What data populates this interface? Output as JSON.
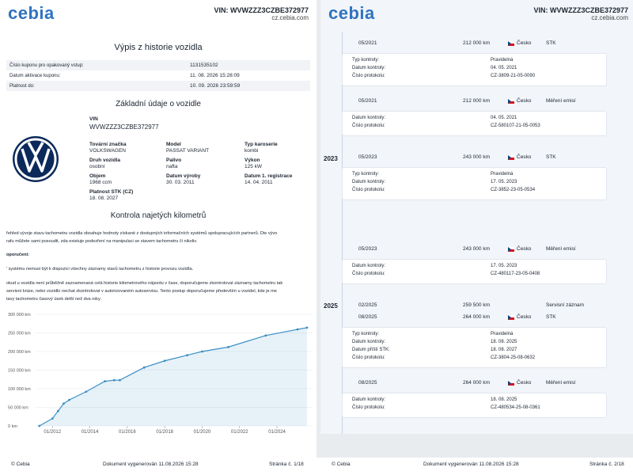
{
  "left": {
    "header": {
      "logo": "cebia",
      "vin": "VIN: WVWZZZ3CZBE372977",
      "site": "cz.cebia.com"
    },
    "title": "Výpis z historie vozidla",
    "coupon": [
      [
        "Číslo kuponu pro opakovaný vstup:",
        "1131535102"
      ],
      [
        "Datum aktivace kuponu:",
        "11. 08. 2026 15:28:09"
      ],
      [
        "Platnost do:",
        "10. 09. 2026 23:59:59"
      ]
    ],
    "basic_title": "Základní údaje o vozidle",
    "vin_label": "VIN",
    "vin_value": "WVWZZZ3CZBE372977",
    "fields": [
      [
        "Tovární značka",
        "VOLKSWAGEN"
      ],
      [
        "Model",
        "PASSAT VARIANT"
      ],
      [
        "Typ karoserie",
        "kombi"
      ],
      [
        "Druh vozidla",
        "osobní"
      ],
      [
        "Palivo",
        "nafta"
      ],
      [
        "Výkon",
        "125 kW"
      ],
      [
        "Objem",
        "1968 ccm"
      ],
      [
        "Datum výroby",
        "30. 03. 2011"
      ],
      [
        "Datum 1. registrace",
        "14. 04. 2011"
      ],
      [
        "Platnost STK (CZ)",
        "18. 08. 2027"
      ]
    ],
    "km_title": "Kontrola najetých kilometrů",
    "paragraphs": [
      "řehled vývoje stavu tachometru vozidla obsahuje hodnoty získané z dostupných informačních systémů spolupracujících partnerů. Die vývo",
      "rafu můžete sami posoudit, zda existuje podezření na manipulaci se stavem tachometru či nikoliv.",
      "oporučení:",
      "' systému nemusí být k dispozici všechny záznamy stavů tachometru z historie provozu vozidla.",
      "okud u vozidla není průběžně zaznamenaná celá historie kilometrového nájezdu v čase, doporučujeme zkontrolovat záznamy tachometru tak",
      "servisní knize, nebo vozidlo nechat zkontrolovat v autorizovaném autoservisu. Tento postup doporučujeme především u vozidel, kde je me",
      "tavy tachometru časový úsek delší než dva roky."
    ],
    "chart": {
      "type": "line",
      "x": [
        2011.3,
        2012.0,
        2012.3,
        2012.6,
        2012.9,
        2013.8,
        2014.8,
        2015.3,
        2015.6,
        2016.9,
        2018.0,
        2019.2,
        2020.0,
        2021.4,
        2023.4,
        2025.1,
        2025.6
      ],
      "values": [
        0,
        20000,
        40000,
        60000,
        70000,
        92000,
        120000,
        123000,
        123000,
        157000,
        175000,
        190000,
        200000,
        212000,
        243000,
        259500,
        264000
      ],
      "color": "#3a8fc4",
      "xlim": [
        2011.1,
        2025.9
      ],
      "ylim": [
        0,
        300000
      ],
      "xticks": [
        {
          "value": 2012,
          "label": "01/2012"
        },
        {
          "value": 2014,
          "label": "01/2014"
        },
        {
          "value": 2016,
          "label": "01/2016"
        },
        {
          "value": 2018,
          "label": "01/2018"
        },
        {
          "value": 2020,
          "label": "01/2020"
        },
        {
          "value": 2022,
          "label": "01/2022"
        },
        {
          "value": 2024,
          "label": "01/2024"
        }
      ],
      "yticks": [
        {
          "value": 0,
          "label": "0 km"
        },
        {
          "value": 50000,
          "label": "50 000 km"
        },
        {
          "value": 100000,
          "label": "100 000 km"
        },
        {
          "value": 150000,
          "label": "150 000 km"
        },
        {
          "value": 200000,
          "label": "200 000 km"
        },
        {
          "value": 250000,
          "label": "250 000 km"
        },
        {
          "value": 300000,
          "label": "300 000 km"
        }
      ],
      "grid": true
    },
    "footer": {
      "copyright": "© Cebia",
      "generated": "Dokument vygenerován 11.08.2026 15:28",
      "page": "Stránka č. 1/18"
    }
  },
  "right": {
    "header": {
      "logo": "cebia",
      "vin": "VIN: WVWZZZ3CZBE372977",
      "site": "cz.cebia.com"
    },
    "years": [
      "2023",
      "2025"
    ],
    "entries": [
      {
        "date": "05/2021",
        "km": "212 000 km",
        "country": "Česko",
        "kind": "STK",
        "rows": [
          [
            "Typ kontroly:",
            "Pravidelná"
          ],
          [
            "Datum kontroly:",
            "04. 05. 2021"
          ],
          [
            "Číslo protokolu:",
            "CZ-3809-21-05-0090"
          ]
        ]
      },
      {
        "date": "05/2021",
        "km": "212 000 km",
        "country": "Česko",
        "kind": "Měření emisí",
        "rows": [
          [
            "Datum kontroly:",
            "04. 05. 2021"
          ],
          [
            "Číslo protokolu:",
            "CZ-580107-21-05-0053"
          ]
        ]
      },
      {
        "date": "05/2023",
        "km": "243 000 km",
        "country": "Česko",
        "kind": "STK",
        "rows": [
          [
            "Typ kontroly:",
            "Pravidelná"
          ],
          [
            "Datum kontroly:",
            "17. 05. 2023"
          ],
          [
            "Číslo protokolu:",
            "CZ-3852-23-05-0534"
          ]
        ]
      },
      {
        "date": "05/2023",
        "km": "243 000 km",
        "country": "Česko",
        "kind": "Měření emisí",
        "rows": [
          [
            "Datum kontroly:",
            "17. 05. 2023"
          ],
          [
            "Číslo protokolu:",
            "CZ-480117-23-05-0408"
          ]
        ]
      },
      {
        "date": "02/2025",
        "km": "259 500 km",
        "kind": "Servisní záznam",
        "rows": []
      },
      {
        "date": "08/2025",
        "km": "264 000 km",
        "country": "Česko",
        "kind": "STK",
        "rows": [
          [
            "Typ kontroly:",
            "Pravidelná"
          ],
          [
            "Datum kontroly:",
            "18. 08. 2025"
          ],
          [
            "Datum příští STK:",
            "18. 08. 2027"
          ],
          [
            "Číslo protokolu:",
            "CZ-3804-25-08-0632"
          ]
        ]
      },
      {
        "date": "08/2025",
        "km": "264 000 km",
        "country": "Česko",
        "kind": "Měření emisí",
        "rows": [
          [
            "Datum kontroly:",
            "18. 08. 2025"
          ],
          [
            "Číslo protokolu:",
            "CZ-480534-25-08-0361"
          ]
        ]
      }
    ],
    "footer": {
      "copyright": "© Cebia",
      "generated": "Dokument vygenerován 11.08.2026 15:28",
      "page": "Stránka č. 2/18"
    }
  }
}
